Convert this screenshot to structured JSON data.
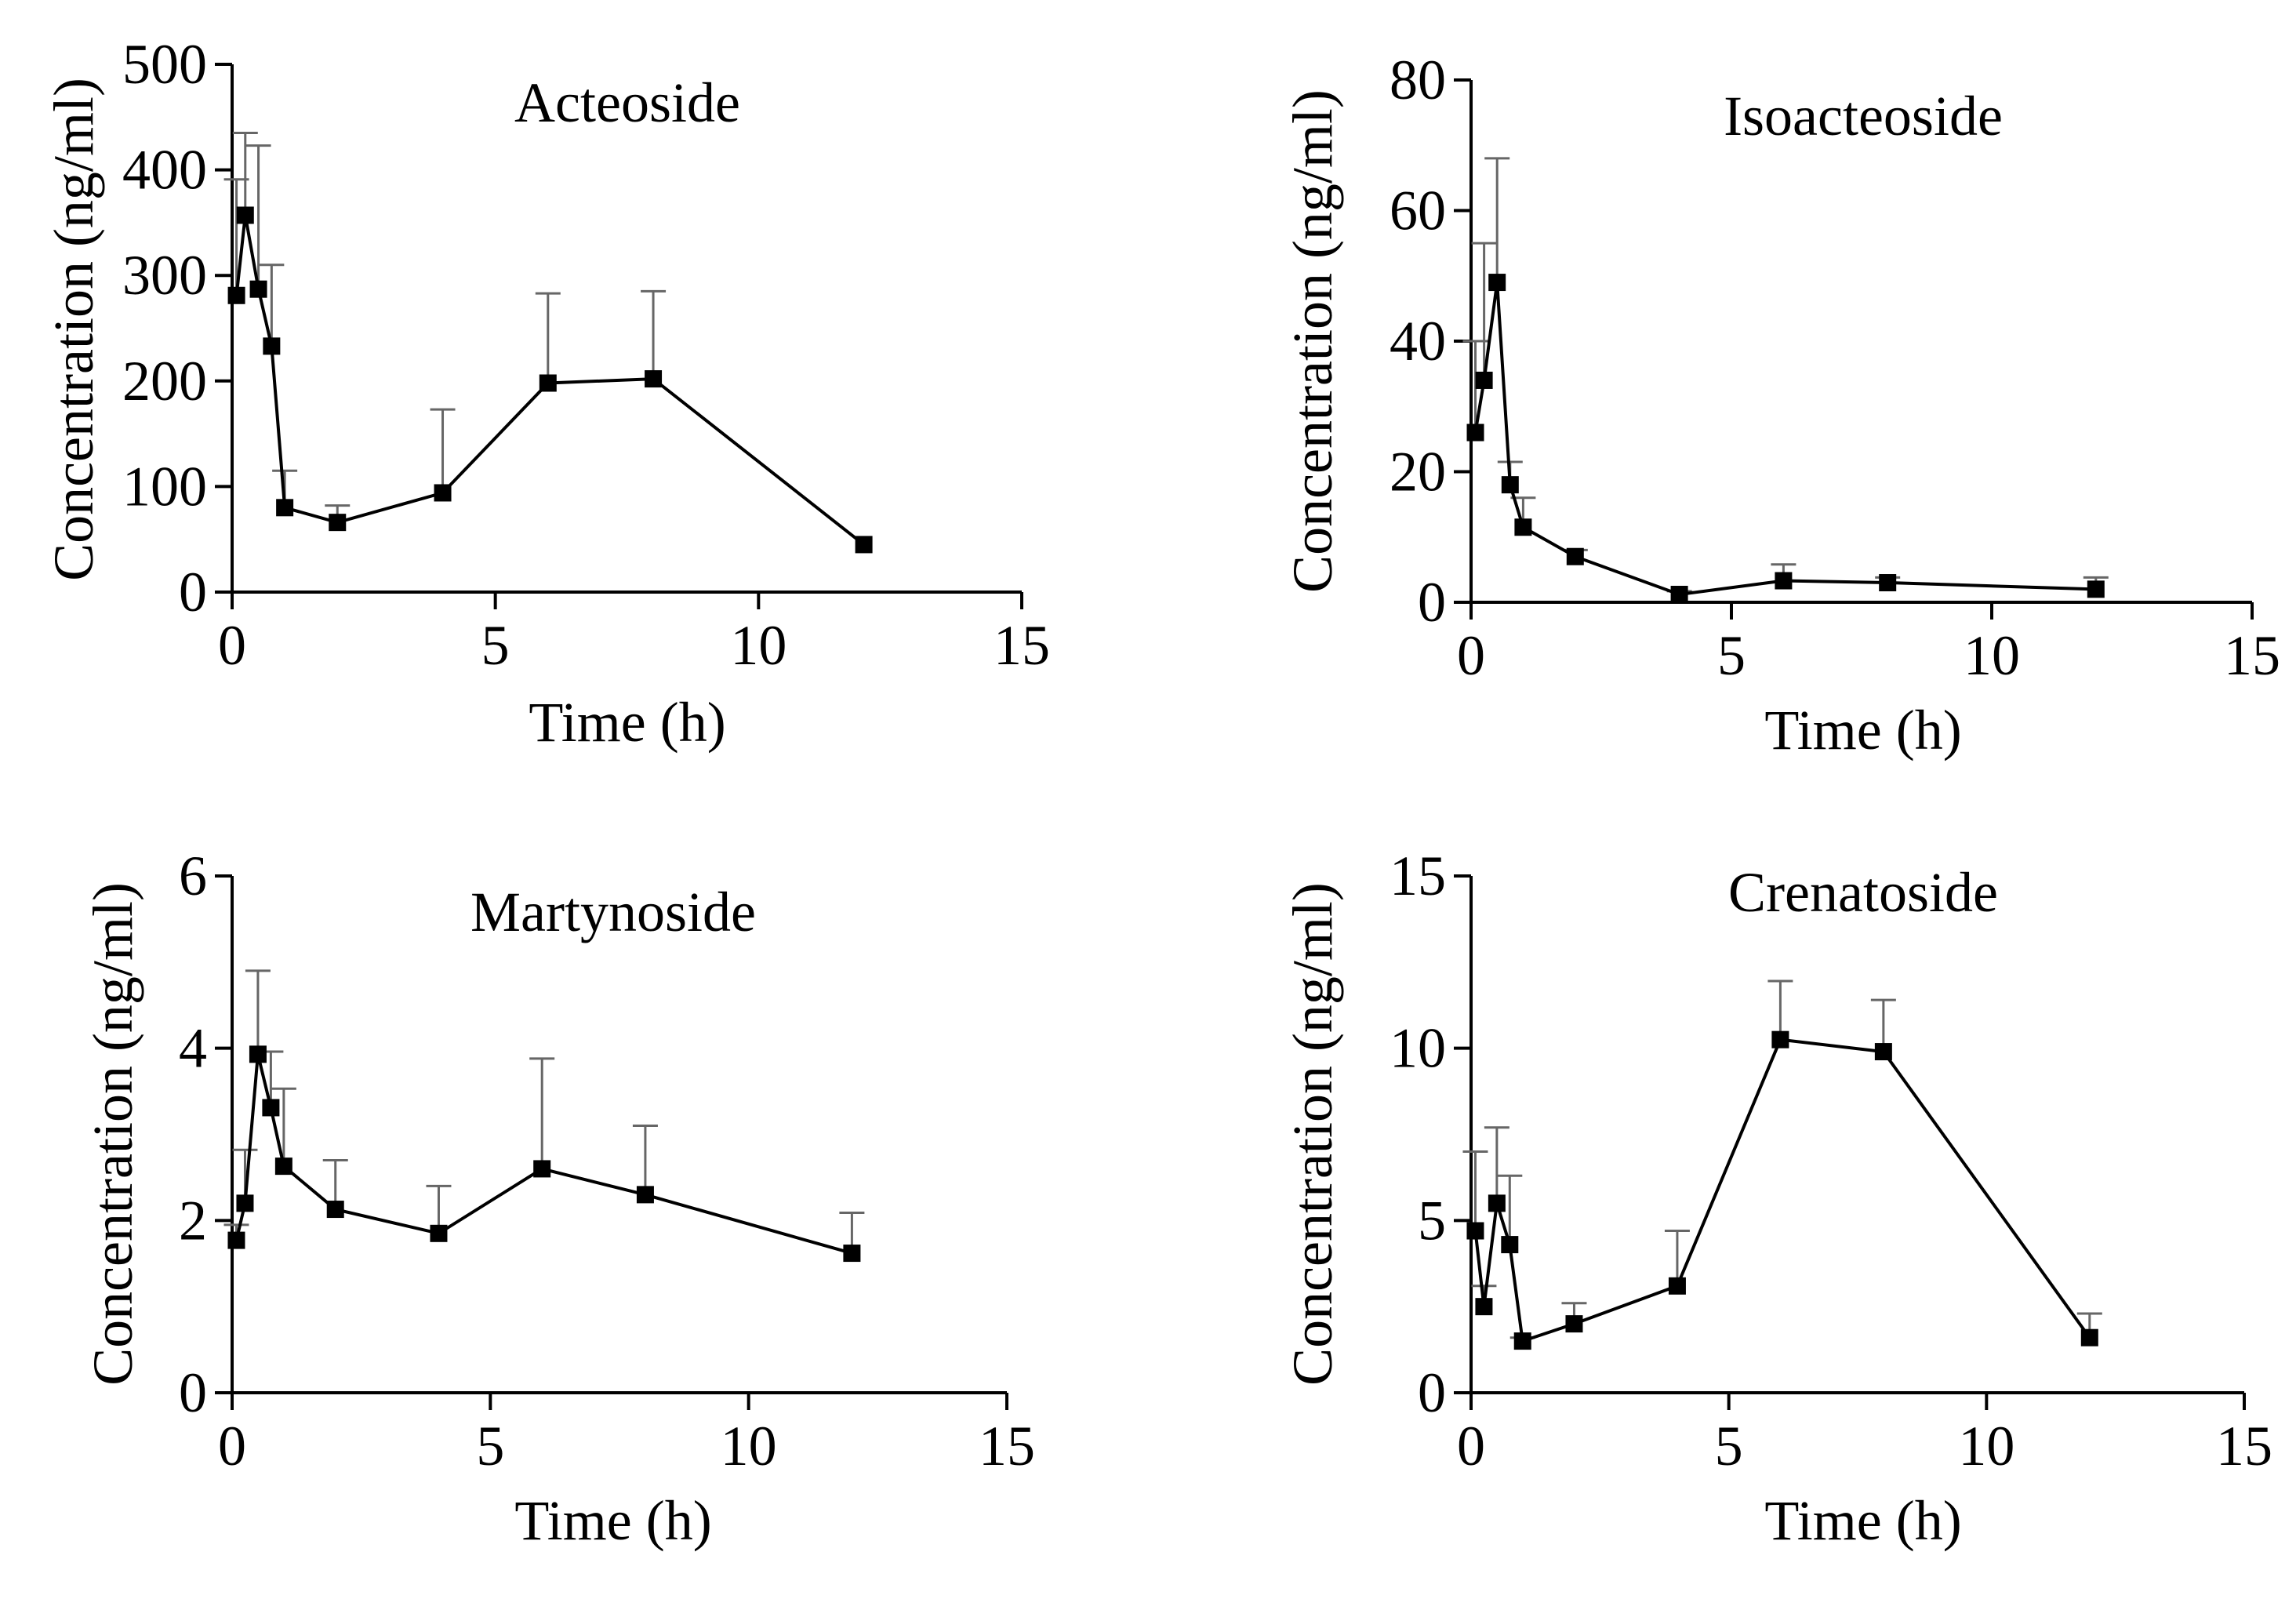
{
  "chart_data": [
    {
      "type": "line",
      "title": "Acteoside",
      "xlabel": "Time (h)",
      "ylabel": "Concentration (ng/ml)",
      "xlim": [
        0,
        15
      ],
      "ylim": [
        0,
        500
      ],
      "xticks": [
        0,
        5,
        10,
        15
      ],
      "yticks": [
        0,
        100,
        200,
        300,
        400,
        500
      ],
      "x": [
        0.083,
        0.25,
        0.5,
        0.75,
        1,
        2,
        4,
        6,
        8,
        12
      ],
      "y": [
        281,
        357,
        287,
        233,
        80,
        66,
        94,
        198,
        202,
        45
      ],
      "error": [
        110,
        78,
        136,
        77,
        35,
        16,
        79,
        85,
        83,
        0
      ],
      "grid": false,
      "legend": "none",
      "marker": "square"
    },
    {
      "type": "line",
      "title": "Isoacteoside",
      "xlabel": "Time (h)",
      "ylabel": "Concentration (ng/ml)",
      "xlim": [
        0,
        15
      ],
      "ylim": [
        0,
        80
      ],
      "xticks": [
        0,
        5,
        10,
        15
      ],
      "yticks": [
        0,
        20,
        40,
        60,
        80
      ],
      "x": [
        0.083,
        0.25,
        0.5,
        0.75,
        1,
        2,
        4,
        6,
        8,
        12
      ],
      "y": [
        26,
        34,
        49,
        18,
        11.5,
        7,
        1.2,
        3.3,
        3,
        2
      ],
      "error": [
        14,
        21,
        19,
        3.5,
        4.5,
        1,
        0.5,
        2.5,
        0.8,
        1.8
      ],
      "grid": false,
      "legend": "none",
      "marker": "square"
    },
    {
      "type": "line",
      "title": "Martynoside",
      "xlabel": "Time (h)",
      "ylabel": "Concentration (ng/ml)",
      "xlim": [
        0,
        15
      ],
      "ylim": [
        0,
        6
      ],
      "xticks": [
        0,
        5,
        10,
        15
      ],
      "yticks": [
        0,
        2,
        4,
        6
      ],
      "x": [
        0.083,
        0.25,
        0.5,
        0.75,
        1,
        2,
        4,
        6,
        8,
        12
      ],
      "y": [
        1.77,
        2.2,
        3.93,
        3.31,
        2.63,
        2.13,
        1.85,
        2.6,
        2.3,
        1.62
      ],
      "error": [
        0.18,
        0.62,
        0.97,
        0.65,
        0.9,
        0.57,
        0.55,
        1.28,
        0.8,
        0.47
      ],
      "grid": false,
      "legend": "none",
      "marker": "square"
    },
    {
      "type": "line",
      "title": "Crenatoside",
      "xlabel": "Time (h)",
      "ylabel": "Concentration (ng/ml)",
      "xlim": [
        0,
        15
      ],
      "ylim": [
        0,
        15
      ],
      "xticks": [
        0,
        5,
        10,
        15
      ],
      "yticks": [
        0,
        5,
        10,
        15
      ],
      "x": [
        0.083,
        0.25,
        0.5,
        0.75,
        1,
        2,
        4,
        6,
        8,
        12
      ],
      "y": [
        4.7,
        2.5,
        5.5,
        4.3,
        1.5,
        2.0,
        3.1,
        10.25,
        9.9,
        1.6
      ],
      "error": [
        2.3,
        0.6,
        2.2,
        2.0,
        0.1,
        0.6,
        1.6,
        1.7,
        1.5,
        0.7
      ],
      "grid": false,
      "legend": "none",
      "marker": "square"
    }
  ]
}
